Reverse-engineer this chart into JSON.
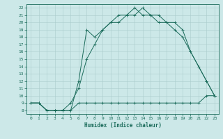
{
  "xlabel": "Humidex (Indice chaleur)",
  "bg_color": "#cce8e8",
  "grid_color": "#aacccc",
  "line_color": "#1a6b5a",
  "xlim": [
    -0.5,
    23.5
  ],
  "ylim": [
    7.5,
    22.5
  ],
  "xticks": [
    0,
    1,
    2,
    3,
    4,
    5,
    6,
    7,
    8,
    9,
    10,
    11,
    12,
    13,
    14,
    15,
    16,
    17,
    18,
    19,
    20,
    21,
    22,
    23
  ],
  "yticks": [
    8,
    9,
    10,
    11,
    12,
    13,
    14,
    15,
    16,
    17,
    18,
    19,
    20,
    21,
    22
  ],
  "line1_x": [
    0,
    1,
    2,
    3,
    4,
    5,
    6,
    7,
    8,
    9,
    10,
    11,
    12,
    13,
    14,
    15,
    16,
    17,
    18,
    19,
    20,
    21,
    22,
    23
  ],
  "line1_y": [
    9,
    9,
    8,
    8,
    8,
    8,
    9,
    9,
    9,
    9,
    9,
    9,
    9,
    9,
    9,
    9,
    9,
    9,
    9,
    9,
    9,
    9,
    10,
    10
  ],
  "line2_x": [
    0,
    1,
    2,
    3,
    4,
    5,
    6,
    7,
    8,
    9,
    10,
    11,
    12,
    13,
    14,
    15,
    16,
    17,
    18,
    19,
    20,
    21,
    22,
    23
  ],
  "line2_y": [
    9,
    9,
    8,
    8,
    8,
    9,
    11,
    15,
    17,
    19,
    20,
    20,
    21,
    21,
    22,
    21,
    21,
    20,
    20,
    19,
    16,
    14,
    12,
    10
  ],
  "line3_x": [
    0,
    1,
    2,
    3,
    4,
    5,
    6,
    7,
    8,
    9,
    10,
    11,
    12,
    13,
    14,
    15,
    16,
    17,
    18,
    19,
    20,
    22,
    23
  ],
  "line3_y": [
    9,
    9,
    8,
    8,
    8,
    8,
    12,
    19,
    18,
    19,
    20,
    21,
    21,
    22,
    21,
    21,
    20,
    20,
    19,
    18,
    16,
    12,
    10
  ],
  "tick_fontsize": 4.5,
  "xlabel_fontsize": 5.5,
  "linewidth": 0.7,
  "markersize": 2.5
}
